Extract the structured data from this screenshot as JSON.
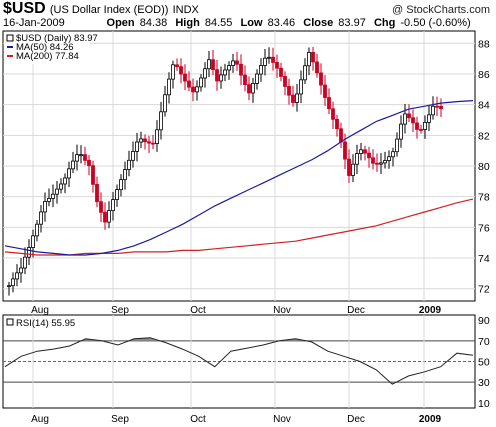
{
  "header": {
    "symbol": "$USD",
    "description": "(US Dollar Index (EOD))",
    "exchange": "INDX",
    "credit": "@ StockCharts.com",
    "date": "16-Jan-2009",
    "open_label": "Open",
    "open": "84.38",
    "high_label": "High",
    "high": "84.55",
    "low_label": "Low",
    "low": "83.46",
    "close_label": "Close",
    "close": "83.97",
    "chg_label": "Chg",
    "chg": "-0.50 (-0.60%)"
  },
  "legend": {
    "price": "$USD (Daily) 83.97",
    "ma50": "MA(50) 84.26",
    "ma200": "MA(200) 77.84",
    "rsi": "RSI(14) 55.95"
  },
  "colors": {
    "up": "#000000",
    "down": "#cc0022",
    "ma50": "#1a1aa0",
    "ma200": "#d42020",
    "rsi_fill": "#8a8a8a",
    "grid": "#d8d8d8"
  },
  "chart_data": [
    {
      "type": "candlestick",
      "title": "$USD (Daily)",
      "ylim": [
        71.2,
        88.8
      ],
      "y_ticks": [
        72,
        74,
        76,
        78,
        80,
        82,
        84,
        86,
        88
      ],
      "x_labels": [
        "Aug",
        "Sep",
        "Oct",
        "Nov",
        "Dec",
        "2009"
      ],
      "grid": true,
      "series": [
        {
          "name": "MA(50)",
          "values": [
            74.8,
            74.6,
            74.4,
            74.3,
            74.2,
            74.2,
            74.3,
            74.5,
            74.8,
            75.2,
            75.7,
            76.2,
            76.8,
            77.4,
            77.9,
            78.4,
            78.9,
            79.4,
            79.9,
            80.4,
            81.0,
            81.7,
            82.3,
            82.9,
            83.3,
            83.7,
            83.9,
            84.1,
            84.2,
            84.26
          ]
        },
        {
          "name": "MA(200)",
          "values": [
            74.4,
            74.3,
            74.2,
            74.2,
            74.2,
            74.3,
            74.3,
            74.3,
            74.4,
            74.4,
            74.4,
            74.5,
            74.5,
            74.6,
            74.7,
            74.8,
            74.9,
            75.0,
            75.1,
            75.3,
            75.5,
            75.7,
            75.9,
            76.1,
            76.4,
            76.7,
            77.0,
            77.3,
            77.6,
            77.84
          ]
        }
      ]
    },
    {
      "type": "line",
      "title": "RSI(14)",
      "ylim": [
        5,
        95
      ],
      "y_ticks": [
        10,
        30,
        50,
        70,
        90
      ],
      "reference_lines": [
        30,
        50,
        70
      ],
      "x_labels": [
        "Aug",
        "Sep",
        "Oct",
        "Nov",
        "Dec",
        "2009"
      ],
      "series": [
        {
          "name": "RSI(14)",
          "values": [
            45,
            55,
            60,
            62,
            65,
            72,
            70,
            66,
            72,
            73,
            68,
            62,
            55,
            45,
            60,
            63,
            66,
            70,
            72,
            69,
            60,
            55,
            50,
            42,
            28,
            36,
            40,
            45,
            58,
            56
          ]
        }
      ]
    }
  ]
}
